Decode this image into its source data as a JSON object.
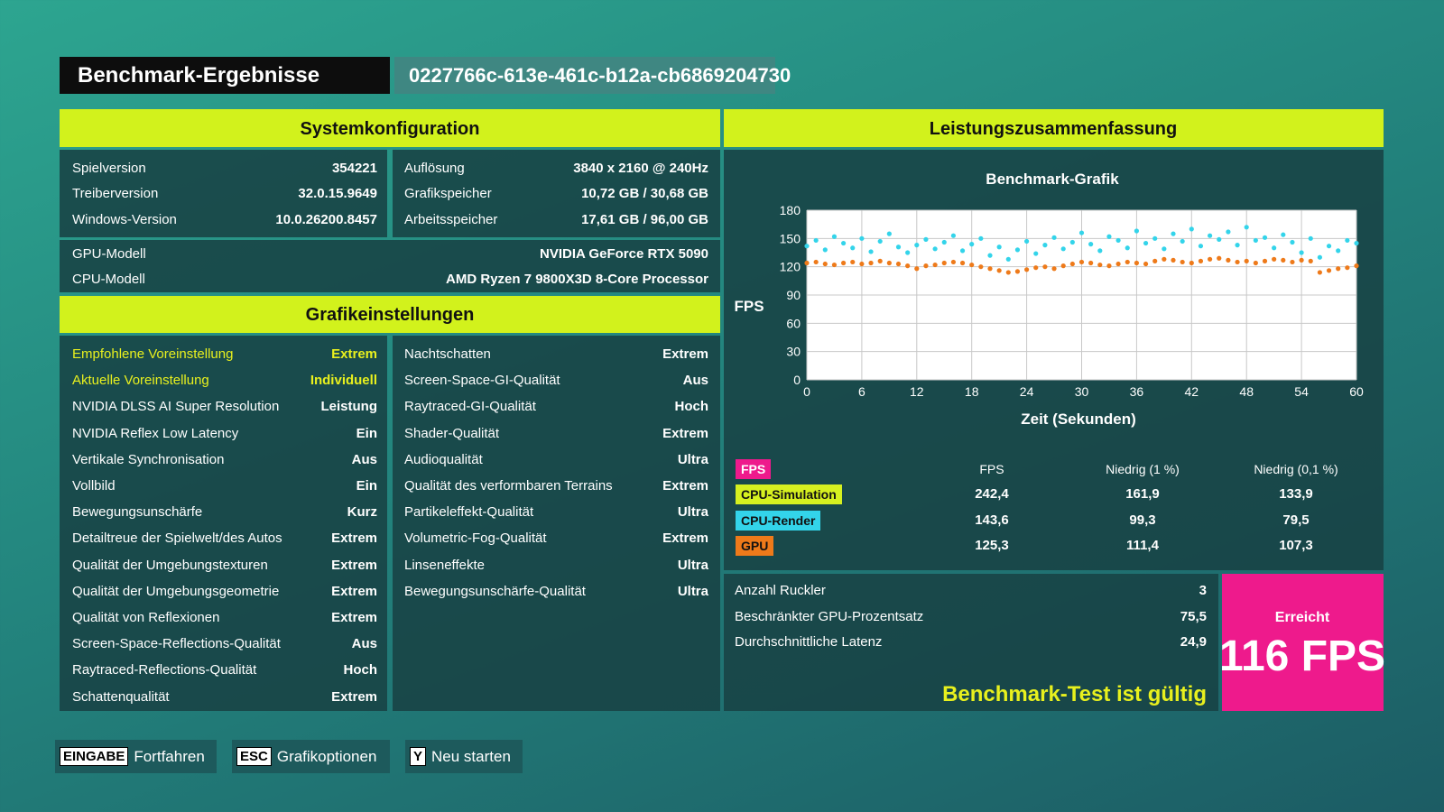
{
  "header": {
    "title": "Benchmark-Ergebnisse",
    "run_id": "0227766c-613e-461c-b12a-cb6869204730"
  },
  "system": {
    "title": "Systemkonfiguration",
    "left": [
      [
        "Spielversion",
        "354221"
      ],
      [
        "Treiberversion",
        "32.0.15.9649"
      ],
      [
        "Windows-Version",
        "10.0.26200.8457"
      ]
    ],
    "right": [
      [
        "Auflösung",
        "3840 x 2160 @ 240Hz"
      ],
      [
        "Grafikspeicher",
        "10,72 GB / 30,68 GB"
      ],
      [
        "Arbeitsspeicher",
        "17,61 GB / 96,00 GB"
      ]
    ],
    "hardware": [
      [
        "GPU-Modell",
        "NVIDIA GeForce RTX 5090"
      ],
      [
        "CPU-Modell",
        "AMD Ryzen 7 9800X3D 8-Core Processor"
      ]
    ]
  },
  "graphics": {
    "title": "Grafikeinstellungen",
    "left": [
      [
        "Empfohlene Voreinstellung",
        "Extrem"
      ],
      [
        "Aktuelle Voreinstellung",
        "Individuell"
      ],
      [
        "NVIDIA DLSS AI Super Resolution",
        "Leistung"
      ],
      [
        "NVIDIA Reflex Low Latency",
        "Ein"
      ],
      [
        "Vertikale Synchronisation",
        "Aus"
      ],
      [
        "Vollbild",
        "Ein"
      ],
      [
        "Bewegungsunschärfe",
        "Kurz"
      ],
      [
        "Detailtreue der Spielwelt/des Autos",
        "Extrem"
      ],
      [
        "Qualität der Umgebungstexturen",
        "Extrem"
      ],
      [
        "Qualität der Umgebungsgeometrie",
        "Extrem"
      ],
      [
        "Qualität von Reflexionen",
        "Extrem"
      ],
      [
        "Screen-Space-Reflections-Qualität",
        "Aus"
      ],
      [
        "Raytraced-Reflections-Qualität",
        "Hoch"
      ],
      [
        "Schattenqualität",
        "Extrem"
      ]
    ],
    "right": [
      [
        "Nachtschatten",
        "Extrem"
      ],
      [
        "Screen-Space-GI-Qualität",
        "Aus"
      ],
      [
        "Raytraced-GI-Qualität",
        "Hoch"
      ],
      [
        "Shader-Qualität",
        "Extrem"
      ],
      [
        "Audioqualität",
        "Ultra"
      ],
      [
        "Qualität des verformbaren Terrains",
        "Extrem"
      ],
      [
        "Partikeleffekt-Qualität",
        "Ultra"
      ],
      [
        "Volumetric-Fog-Qualität",
        "Extrem"
      ],
      [
        "Linseneffekte",
        "Ultra"
      ],
      [
        "Bewegungsunschärfe-Qualität",
        "Ultra"
      ]
    ]
  },
  "performance": {
    "title": "Leistungszusammenfassung",
    "table": {
      "badge": "FPS",
      "badge_color": "#ee1a8c",
      "columns": [
        "FPS",
        "Niedrig (1 %)",
        "Niedrig (0,1 %)"
      ],
      "rows": [
        {
          "label": "CPU-Simulation",
          "color": "#d6f020",
          "values": [
            "242,4",
            "161,9",
            "133,9"
          ]
        },
        {
          "label": "CPU-Render",
          "color": "#33d4ea",
          "values": [
            "143,6",
            "99,3",
            "79,5"
          ]
        },
        {
          "label": "GPU",
          "color": "#ee7a1a",
          "values": [
            "125,3",
            "111,4",
            "107,3"
          ]
        }
      ]
    },
    "stats": [
      [
        "Anzahl Ruckler",
        "3"
      ],
      [
        "Beschränkter GPU-Prozentsatz",
        "75,5"
      ],
      [
        "Durchschnittliche Latenz",
        "24,9"
      ]
    ],
    "validity": "Benchmark-Test ist gültig",
    "result_label": "Erreicht",
    "result": "116 FPS"
  },
  "chart_data": {
    "type": "scatter",
    "title": "Benchmark-Grafik",
    "x_label": "Zeit (Sekunden)",
    "y_label": "FPS",
    "xlim": [
      0,
      60
    ],
    "ylim": [
      0,
      180
    ],
    "xticks": [
      0,
      6,
      12,
      18,
      24,
      30,
      36,
      42,
      48,
      54,
      60
    ],
    "yticks": [
      0,
      30,
      60,
      90,
      120,
      150,
      180
    ],
    "grid": true,
    "x": [
      0,
      1,
      2,
      3,
      4,
      5,
      6,
      7,
      8,
      9,
      10,
      11,
      12,
      13,
      14,
      15,
      16,
      17,
      18,
      19,
      20,
      21,
      22,
      23,
      24,
      25,
      26,
      27,
      28,
      29,
      30,
      31,
      32,
      33,
      34,
      35,
      36,
      37,
      38,
      39,
      40,
      41,
      42,
      43,
      44,
      45,
      46,
      47,
      48,
      49,
      50,
      51,
      52,
      53,
      54,
      55,
      56,
      57,
      58,
      59,
      60
    ],
    "series": [
      {
        "name": "CPU-Render",
        "color": "#33d4ea",
        "values": [
          142,
          148,
          138,
          152,
          145,
          140,
          150,
          136,
          147,
          155,
          141,
          135,
          143,
          149,
          139,
          146,
          153,
          137,
          144,
          150,
          132,
          141,
          128,
          138,
          147,
          134,
          143,
          151,
          139,
          146,
          156,
          144,
          137,
          152,
          148,
          140,
          158,
          145,
          150,
          139,
          155,
          147,
          160,
          142,
          153,
          149,
          157,
          143,
          162,
          148,
          151,
          140,
          154,
          146,
          135,
          150,
          130,
          142,
          137,
          148,
          145
        ]
      },
      {
        "name": "GPU",
        "color": "#ee7a1a",
        "values": [
          124,
          125,
          123,
          122,
          124,
          125,
          123,
          124,
          126,
          124,
          123,
          121,
          118,
          121,
          122,
          124,
          125,
          124,
          122,
          120,
          118,
          116,
          114,
          115,
          117,
          119,
          120,
          118,
          121,
          123,
          125,
          124,
          122,
          121,
          123,
          125,
          124,
          123,
          126,
          128,
          127,
          125,
          124,
          126,
          128,
          129,
          127,
          125,
          126,
          124,
          126,
          128,
          127,
          125,
          127,
          126,
          114,
          116,
          118,
          119,
          121
        ]
      }
    ]
  },
  "footer": [
    {
      "key": "EINGABE",
      "label": "Fortfahren"
    },
    {
      "key": "ESC",
      "label": "Grafikoptionen"
    },
    {
      "key": "Y",
      "label": "Neu starten"
    }
  ]
}
